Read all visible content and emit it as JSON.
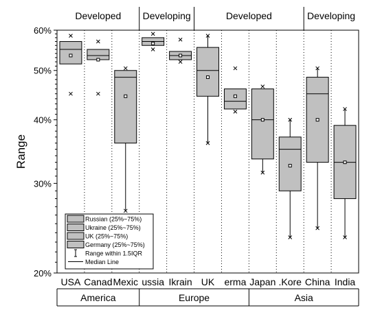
{
  "chart_data": {
    "type": "box",
    "ylabel": "Range",
    "yscale": "log",
    "ylim": [
      20,
      60
    ],
    "y_ticks": [
      {
        "value": 20,
        "label": "20%"
      },
      {
        "value": 30,
        "label": "30%"
      },
      {
        "value": 40,
        "label": "40%"
      },
      {
        "value": 50,
        "label": "50%"
      },
      {
        "value": 60,
        "label": "60%"
      }
    ],
    "categories": [
      "USA",
      "Canada",
      "Mexico",
      "Russia",
      "Ukraine",
      "UK",
      "Germany",
      "Japan",
      "S.Korea",
      "China",
      "India"
    ],
    "category_labels": [
      "USA",
      "Canad",
      "Mexic",
      "ussia",
      "Ikrain",
      "UK",
      "erma",
      "Japan",
      ".Kore",
      "China",
      "India"
    ],
    "boxes": [
      {
        "category": "USA",
        "q1": 51.5,
        "median": 55.0,
        "q3": 57.0,
        "mean": 53.5,
        "whisker_low": 51.5,
        "whisker_high": 57.0,
        "outliers": [
          45.0,
          58.5
        ]
      },
      {
        "category": "Canada",
        "q1": 52.5,
        "median": 53.5,
        "q3": 55.0,
        "mean": 52.5,
        "whisker_low": 52.5,
        "whisker_high": 55.0,
        "outliers": [
          45.0,
          57.0
        ]
      },
      {
        "category": "Mexico",
        "q1": 36.0,
        "median": 48.5,
        "q3": 50.0,
        "mean": 44.5,
        "whisker_low": 26.5,
        "whisker_high": 50.0,
        "outliers": [
          26.5,
          50.5
        ]
      },
      {
        "category": "Russia",
        "q1": 56.0,
        "median": 57.0,
        "q3": 58.0,
        "mean": 56.5,
        "whisker_low": 56.0,
        "whisker_high": 58.0,
        "outliers": [
          55.0,
          59.0
        ]
      },
      {
        "category": "Ukraine",
        "q1": 52.5,
        "median": 53.5,
        "q3": 54.5,
        "mean": 53.5,
        "whisker_low": 52.5,
        "whisker_high": 54.5,
        "outliers": [
          52.0,
          57.5
        ]
      },
      {
        "category": "UK",
        "q1": 44.5,
        "median": 50.0,
        "q3": 55.5,
        "mean": 48.5,
        "whisker_low": 36.0,
        "whisker_high": 58.5,
        "outliers": [
          36.0,
          58.5
        ]
      },
      {
        "category": "Germany",
        "q1": 42.0,
        "median": 43.5,
        "q3": 46.0,
        "mean": 44.5,
        "whisker_low": 42.0,
        "whisker_high": 46.0,
        "outliers": [
          41.5,
          50.5
        ]
      },
      {
        "category": "Japan",
        "q1": 33.5,
        "median": 40.0,
        "q3": 46.0,
        "mean": 40.0,
        "whisker_low": 31.5,
        "whisker_high": 46.0,
        "outliers": [
          31.5,
          46.5
        ]
      },
      {
        "category": "S.Korea",
        "q1": 29.0,
        "median": 35.0,
        "q3": 37.0,
        "mean": 32.5,
        "whisker_low": 23.5,
        "whisker_high": 40.0,
        "outliers": [
          23.5,
          40.0
        ]
      },
      {
        "category": "China",
        "q1": 33.0,
        "median": 45.0,
        "q3": 48.5,
        "mean": 40.0,
        "whisker_low": 24.5,
        "whisker_high": 50.5,
        "outliers": [
          24.5,
          50.5
        ]
      },
      {
        "category": "India",
        "q1": 28.0,
        "median": 33.0,
        "q3": 39.0,
        "mean": 33.0,
        "whisker_low": 23.5,
        "whisker_high": 42.0,
        "outliers": [
          23.5,
          42.0
        ]
      }
    ],
    "top_groups": [
      {
        "label": "Developed",
        "categories": [
          "USA",
          "Canada",
          "Mexico"
        ]
      },
      {
        "label": "Developing",
        "categories": [
          "Russia",
          "Ukraine"
        ]
      },
      {
        "label": "Developed",
        "categories": [
          "UK",
          "Germany",
          "Japan",
          "S.Korea"
        ]
      },
      {
        "label": "Developing",
        "categories": [
          "China",
          "India"
        ]
      }
    ],
    "bottom_groups": [
      {
        "label": "America",
        "categories": [
          "USA",
          "Canada",
          "Mexico"
        ]
      },
      {
        "label": "Europe",
        "categories": [
          "Russia",
          "Ukraine",
          "UK",
          "Germany"
        ]
      },
      {
        "label": "Asia",
        "categories": [
          "Japan",
          "S.Korea",
          "China",
          "India"
        ]
      }
    ],
    "legend": {
      "position": "bottom-left",
      "entries": [
        "Russian (25%~75%)",
        "Ukraine (25%~75%)",
        "UK (25%~75%)",
        "Germany (25%~75%)",
        "Range within 1.5IQR",
        "Median Line"
      ]
    },
    "colors": {
      "box_fill": "#c0c0c0",
      "stroke": "#000000",
      "background": "#ffffff"
    }
  }
}
